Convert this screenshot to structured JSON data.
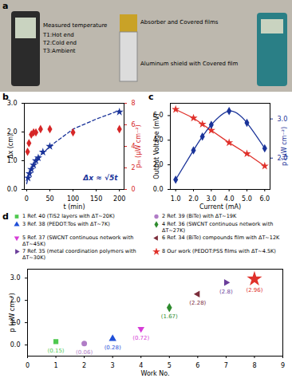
{
  "panel_a": {
    "letter": "a",
    "labels": {
      "measured": "Measured temperature",
      "t1": "T1:Hot end",
      "t2": "T2:Cold end",
      "t3": "T3:Ambient",
      "absorber": "Absorber and Covered films",
      "shield": "Aluminum shield with Covered film"
    }
  },
  "chart_data": [
    {
      "panel": "b",
      "type": "scatter",
      "x_label": "t (min)",
      "y_label": "Δx (cm)",
      "y2_label": "pₘ (μW cm⁻²)",
      "annotation": "Δx ≈ √5t",
      "xlim": [
        -5,
        210
      ],
      "xticks": [
        0,
        50,
        100,
        150,
        200
      ],
      "ylim": [
        0,
        3
      ],
      "yticks": [
        0,
        1,
        2,
        3
      ],
      "y2lim": [
        0,
        8
      ],
      "y2ticks": [
        0,
        2,
        4,
        6,
        8
      ],
      "series": [
        {
          "type": "scatter",
          "marker": "star",
          "color": "#1a3399",
          "axis": "y",
          "x": [
            3,
            6,
            10,
            15,
            20,
            25,
            35,
            50,
            200
          ],
          "values": [
            0.4,
            0.55,
            0.7,
            0.85,
            1.0,
            1.1,
            1.3,
            1.5,
            2.7
          ]
        },
        {
          "type": "line",
          "line_style": "dashed",
          "color": "#1a3399",
          "axis": "y",
          "x": [
            0,
            5,
            10,
            25,
            50,
            100,
            150,
            200
          ],
          "values": [
            0.2,
            0.5,
            0.7,
            1.1,
            1.5,
            2.1,
            2.45,
            2.75
          ]
        },
        {
          "type": "scatter",
          "marker": "diamond",
          "color": "#d62728",
          "axis": "y2",
          "x": [
            2,
            5,
            10,
            15,
            20,
            30,
            50,
            100,
            200
          ],
          "values": [
            3.5,
            4.3,
            5.1,
            5.3,
            5.3,
            5.6,
            5.6,
            5.3,
            5.6
          ]
        }
      ]
    },
    {
      "panel": "c",
      "type": "line",
      "x_label": "Current (mA)",
      "y_label": "Output Voltage (mV)",
      "y2_label": "p (μW cm⁻²)",
      "xlim": [
        0.7,
        6.3
      ],
      "xticks": [
        1,
        2,
        3,
        4,
        5,
        6
      ],
      "ylim": [
        0,
        7
      ],
      "yticks": [
        0,
        2,
        4,
        6
      ],
      "y2lim": [
        1.2,
        3.4
      ],
      "y2ticks": [
        2,
        3
      ],
      "series": [
        {
          "type": "line",
          "line_style": "solid",
          "marker": "star",
          "color": "#e0312b",
          "axis": "y",
          "x": [
            1,
            2,
            2.5,
            3,
            4,
            5,
            6
          ],
          "values": [
            6.5,
            5.8,
            5.3,
            4.8,
            3.8,
            2.9,
            1.9
          ]
        },
        {
          "type": "line",
          "line_style": "smooth",
          "marker": "diamond",
          "color": "#1a3399",
          "axis": "y2",
          "x": [
            1,
            2,
            2.5,
            3,
            4,
            5,
            6
          ],
          "values": [
            1.45,
            2.2,
            2.55,
            2.85,
            3.2,
            2.9,
            2.25
          ]
        }
      ]
    },
    {
      "panel": "d",
      "type": "scatter",
      "x_label": "Work No.",
      "y_label": "p (μW cm⁻²)",
      "legend": "top",
      "data_labels": true,
      "xlim": [
        0,
        9
      ],
      "xticks": [
        0,
        1,
        2,
        3,
        4,
        5,
        6,
        7,
        8,
        9
      ],
      "ylim": [
        -0.5,
        3.4
      ],
      "yticks": [
        0,
        1,
        2,
        3
      ],
      "series": [
        {
          "name": "1 Ref. 40 (TiS2 layers with ΔT~20K)",
          "color": "#4fc94f",
          "marker": "square",
          "x": 1,
          "value": 0.15,
          "value_label": "(0.15)"
        },
        {
          "name": "2 Ref. 39 (BiTe) with ΔT~19K",
          "color": "#b07cc6",
          "marker": "circle",
          "x": 2,
          "value": 0.06,
          "value_label": "(0.06)"
        },
        {
          "name": "3 Ref. 38 (PEDOT:Tos with ΔT~7K)",
          "color": "#1f4fd8",
          "marker": "triangle",
          "x": 3,
          "value": 0.28,
          "value_label": "(0.28)"
        },
        {
          "name": "4 Ref. 36 (SWCNT continuous network with ΔT~27K)",
          "color": "#2e8b2e",
          "marker": "diamond",
          "x": 5,
          "value": 1.67,
          "value_label": "(1.67)"
        },
        {
          "name": "5 Ref. 37 (SWCNT continuous network with ΔT~45K)",
          "color": "#d63cd6",
          "marker": "triangle-down",
          "x": 4,
          "value": 0.72,
          "value_label": "(0.72)"
        },
        {
          "name": "6 Ref. 34 (BiTe) compounds film with ΔT~12K",
          "color": "#7b2d3b",
          "marker": "triangle-left",
          "x": 6,
          "value": 2.28,
          "value_label": "(2.28)"
        },
        {
          "name": "7 Ref. 35 (metal coordination polymers with ΔT~30K)",
          "color": "#6a3d9a",
          "marker": "triangle-right",
          "x": 7,
          "value": 2.8,
          "value_label": "(2.8)"
        },
        {
          "name": "8 Our work (PEDOT:PSS films with ΔT~4.5K)",
          "color": "#e0312b",
          "marker": "star",
          "x": 8,
          "value": 2.96,
          "value_label": "(2.96)"
        }
      ]
    }
  ]
}
